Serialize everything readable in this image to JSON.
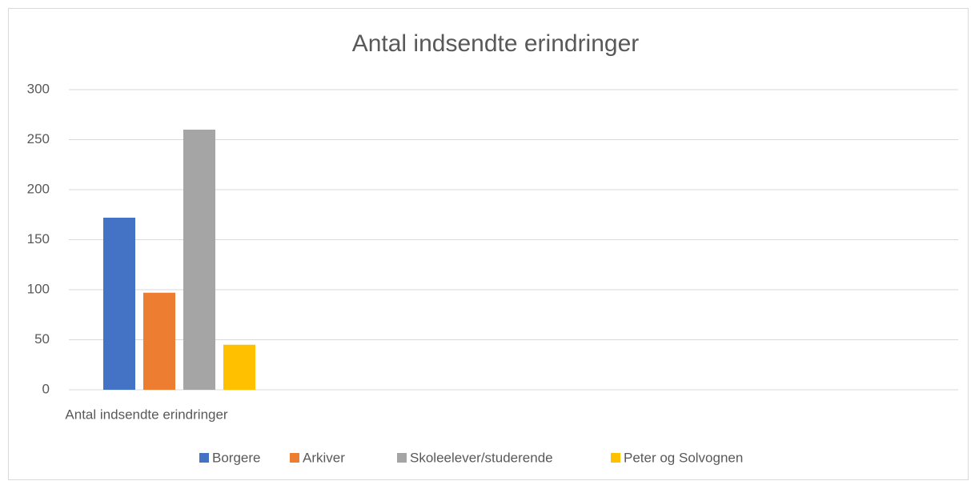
{
  "chart_data": {
    "type": "bar",
    "title": "Antal indsendte erindringer",
    "categories": [
      "Antal indsendte erindringer"
    ],
    "series": [
      {
        "name": "Borgere",
        "color": "#4472c4",
        "values": [
          172
        ]
      },
      {
        "name": "Arkiver",
        "color": "#ed7d31",
        "values": [
          97
        ]
      },
      {
        "name": "Skoleelever/studerende",
        "color": "#a5a5a5",
        "values": [
          260
        ]
      },
      {
        "name": "Peter og Solvognen",
        "color": "#ffc000",
        "values": [
          45
        ]
      }
    ],
    "ylim": [
      0,
      300
    ],
    "yticks": [
      0,
      50,
      100,
      150,
      200,
      250,
      300
    ],
    "grid": true,
    "legend": "bottom"
  }
}
